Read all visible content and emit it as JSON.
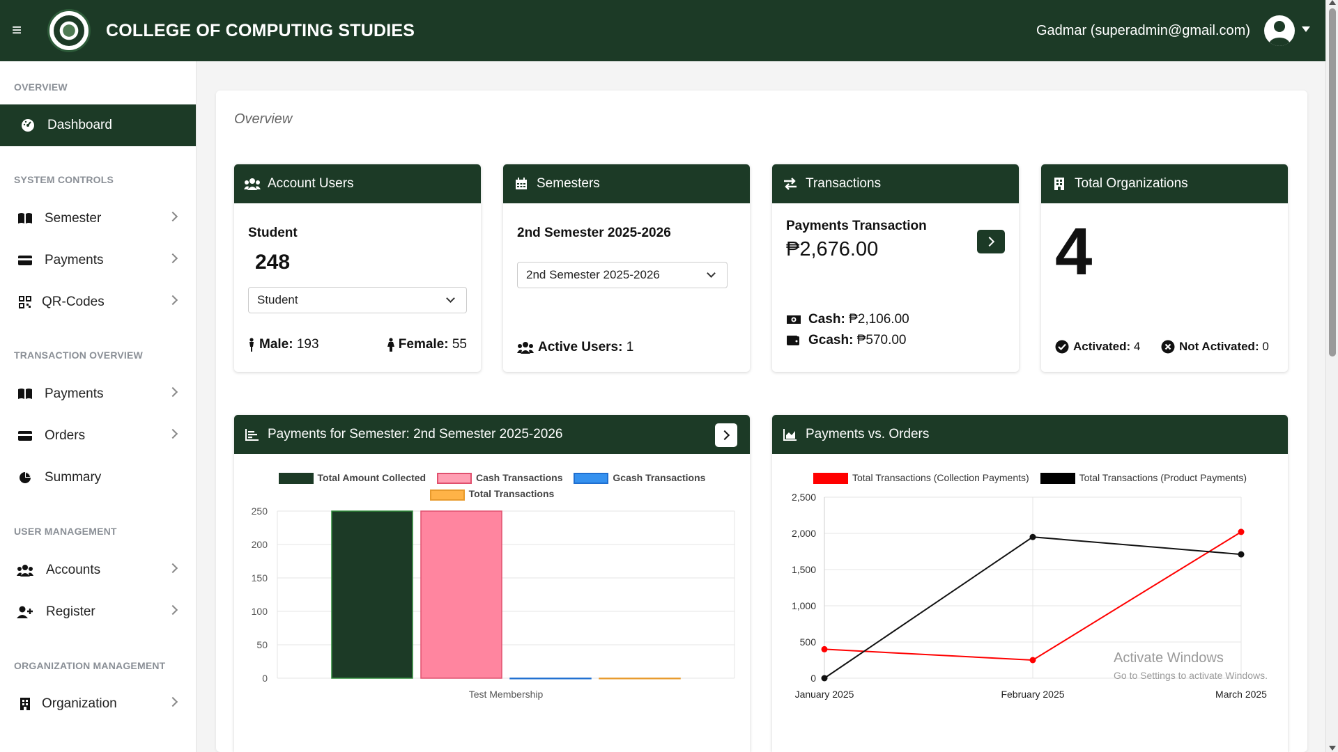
{
  "header": {
    "title": "COLLEGE OF COMPUTING STUDIES",
    "user": "Gadmar (superadmin@gmail.com)"
  },
  "sidebar": {
    "sections": [
      {
        "title": "OVERVIEW",
        "items": [
          {
            "label": "Dashboard",
            "icon": "gauge-icon",
            "active": true
          }
        ]
      },
      {
        "title": "SYSTEM CONTROLS",
        "items": [
          {
            "label": "Semester",
            "icon": "book-icon"
          },
          {
            "label": "Payments",
            "icon": "credit-card-icon"
          },
          {
            "label": "QR-Codes",
            "icon": "qrcode-icon"
          }
        ]
      },
      {
        "title": "TRANSACTION OVERVIEW",
        "items": [
          {
            "label": "Payments",
            "icon": "book-icon"
          },
          {
            "label": "Orders",
            "icon": "credit-card-icon"
          },
          {
            "label": "Summary",
            "icon": "pie-chart-icon"
          }
        ]
      },
      {
        "title": "USER MANAGEMENT",
        "items": [
          {
            "label": "Accounts",
            "icon": "users-icon"
          },
          {
            "label": "Register",
            "icon": "user-plus-icon"
          }
        ]
      },
      {
        "title": "ORGANIZATION MANAGEMENT",
        "items": [
          {
            "label": "Organization",
            "icon": "building-icon"
          }
        ]
      }
    ]
  },
  "main": {
    "overview_label": "Overview",
    "account_users": {
      "title": "Account Users",
      "role_label": "Student",
      "count": "248",
      "select_value": "Student",
      "male_label": "Male:",
      "male_value": "193",
      "female_label": "Female:",
      "female_value": "55"
    },
    "semesters": {
      "title": "Semesters",
      "current": "2nd Semester 2025-2026",
      "select_value": "2nd Semester 2025-2026",
      "active_label": "Active Users:",
      "active_value": "1"
    },
    "transactions": {
      "title": "Transactions",
      "subtitle": "Payments Transaction",
      "total": "₱2,676.00",
      "cash_label": "Cash:",
      "cash_value": "₱2,106.00",
      "gcash_label": "Gcash:",
      "gcash_value": "₱570.00"
    },
    "organizations": {
      "title": "Total Organizations",
      "count": "4",
      "activated_label": "Activated:",
      "activated_value": "4",
      "not_activated_label": "Not Activated:",
      "not_activated_value": "0"
    },
    "payments_chart_title": "Payments for Semester: 2nd Semester 2025-2026",
    "line_chart_title": "Payments vs. Orders"
  },
  "watermark": {
    "title": "Activate Windows",
    "subtitle": "Go to Settings to activate Windows."
  },
  "chart_data": [
    {
      "type": "bar",
      "categories": [
        "Test Membership"
      ],
      "series": [
        {
          "name": "Total Amount Collected",
          "values": [
            250
          ],
          "color": "#1c3a26",
          "border": "#2e8b3a"
        },
        {
          "name": "Cash Transactions",
          "values": [
            250
          ],
          "color": "#ff859f",
          "border": "#e0506e"
        },
        {
          "name": "Gcash Transactions",
          "values": [
            0
          ],
          "color": "#3591ef",
          "border": "#1f6fd0"
        },
        {
          "name": "Total Transactions",
          "values": [
            0
          ],
          "color": "#ffb347",
          "border": "#e89a2c"
        }
      ],
      "ylim": [
        0,
        250
      ],
      "yticks": [
        0,
        50,
        100,
        150,
        200,
        250
      ],
      "grid": true,
      "legend": "top"
    },
    {
      "type": "line",
      "x": [
        "January 2025",
        "February 2025",
        "March 2025"
      ],
      "series": [
        {
          "name": "Total Transactions (Collection Payments)",
          "values": [
            400,
            250,
            2020
          ],
          "color": "#ff0000"
        },
        {
          "name": "Total Transactions (Product Payments)",
          "values": [
            0,
            1950,
            1710
          ],
          "color": "#111111"
        }
      ],
      "ylim": [
        0,
        2500
      ],
      "yticks": [
        "0",
        "500",
        "1,000",
        "1,500",
        "2,000",
        "2,500"
      ],
      "grid": true,
      "legend": "top"
    }
  ]
}
